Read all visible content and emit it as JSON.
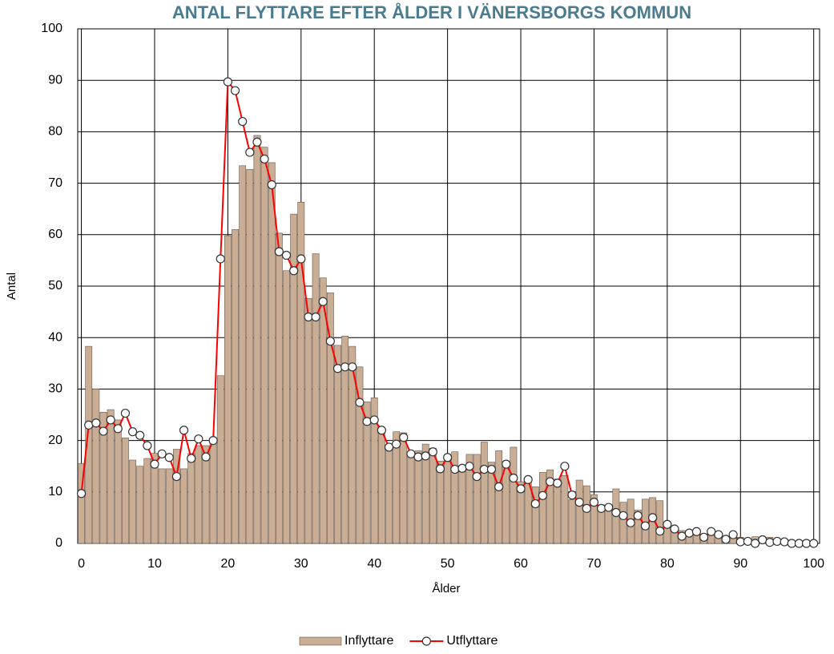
{
  "chart_data": {
    "type": "combo",
    "title": "ANTAL FLYTTARE EFTER ÅLDER I VÄNERSBORGS KOMMUN",
    "x_label": "Ålder",
    "y_label": "Antal",
    "x": [
      0,
      1,
      2,
      3,
      4,
      5,
      6,
      7,
      8,
      9,
      10,
      11,
      12,
      13,
      14,
      15,
      16,
      17,
      18,
      19,
      20,
      21,
      22,
      23,
      24,
      25,
      26,
      27,
      28,
      29,
      30,
      31,
      32,
      33,
      34,
      35,
      36,
      37,
      38,
      39,
      40,
      41,
      42,
      43,
      44,
      45,
      46,
      47,
      48,
      49,
      50,
      51,
      52,
      53,
      54,
      55,
      56,
      57,
      58,
      59,
      60,
      61,
      62,
      63,
      64,
      65,
      66,
      67,
      68,
      69,
      70,
      71,
      72,
      73,
      74,
      75,
      76,
      77,
      78,
      79,
      80,
      81,
      82,
      83,
      84,
      85,
      86,
      87,
      88,
      89,
      90,
      91,
      92,
      93,
      94,
      95,
      96,
      97,
      98,
      99,
      100
    ],
    "series": [
      {
        "name": "Inflyttare",
        "type": "bar",
        "color": "#c9ad95",
        "values": [
          15.5,
          38.3,
          30,
          25.5,
          26,
          24,
          20.5,
          16.2,
          15,
          16.5,
          17.5,
          14.5,
          14.5,
          18.3,
          14.5,
          17.5,
          19,
          19,
          19.5,
          32.6,
          59.8,
          61,
          73.4,
          72.7,
          79.3,
          77,
          74,
          60.3,
          53,
          64,
          66.3,
          47.6,
          56.3,
          51.6,
          48.7,
          38.5,
          40.3,
          38.3,
          34.3,
          27.5,
          28.3,
          22,
          19,
          21.7,
          21.5,
          17.5,
          18,
          19.3,
          18.5,
          16,
          17.3,
          17.8,
          14.8,
          17.3,
          17.3,
          19.7,
          15.8,
          18,
          16,
          18.7,
          12,
          12.5,
          11,
          13.8,
          14.3,
          12.5,
          13.2,
          8.5,
          12.3,
          11.2,
          9.5,
          7.5,
          7.5,
          10.6,
          8,
          8.6,
          6.5,
          8.6,
          8.9,
          8.3,
          4,
          3.2,
          2.5,
          2.5,
          2.5,
          1.2,
          2.5,
          1.5,
          1.2,
          1.5,
          1.2,
          0.8,
          1.3,
          1,
          1.2,
          0.5,
          0.3,
          0.5,
          0.3,
          0.3,
          0.3
        ]
      },
      {
        "name": "Utflyttare",
        "type": "line",
        "color": "#ff0000",
        "values": [
          9.7,
          23,
          23.4,
          21.8,
          24,
          22.3,
          25.3,
          21.7,
          21,
          19,
          15.4,
          17.4,
          16.7,
          13,
          22,
          16.5,
          20.3,
          16.8,
          20,
          55.3,
          89.7,
          88,
          82,
          76,
          78,
          74.7,
          69.7,
          56.7,
          56,
          53,
          55.3,
          44,
          44,
          47,
          39.3,
          34,
          34.3,
          34.3,
          27.4,
          23.7,
          24,
          22,
          18.7,
          19.3,
          20.6,
          17.4,
          16.8,
          17,
          17.8,
          14.5,
          16.7,
          14.4,
          14.6,
          15,
          13,
          14.4,
          14.4,
          11,
          15.4,
          12.7,
          10.6,
          12.4,
          7.7,
          9.3,
          12,
          11.7,
          15,
          9.4,
          8,
          6.8,
          8,
          6.8,
          7,
          6,
          5.4,
          4,
          5.4,
          3.4,
          5,
          2.4,
          3.7,
          2.8,
          1.4,
          2,
          2.3,
          1.2,
          2.3,
          1.7,
          0.8,
          1.7,
          0.3,
          0.4,
          0,
          0.7,
          0.2,
          0.4,
          0.3,
          0,
          0,
          0,
          0
        ]
      }
    ],
    "xlim": [
      -0.5,
      100.8
    ],
    "ylim": [
      0,
      100
    ],
    "xticks": [
      0,
      10,
      20,
      30,
      40,
      50,
      60,
      70,
      80,
      90,
      100
    ],
    "yticks": [
      0,
      10,
      20,
      30,
      40,
      50,
      60,
      70,
      80,
      90,
      100
    ],
    "grid": true,
    "legend": "bottom"
  }
}
